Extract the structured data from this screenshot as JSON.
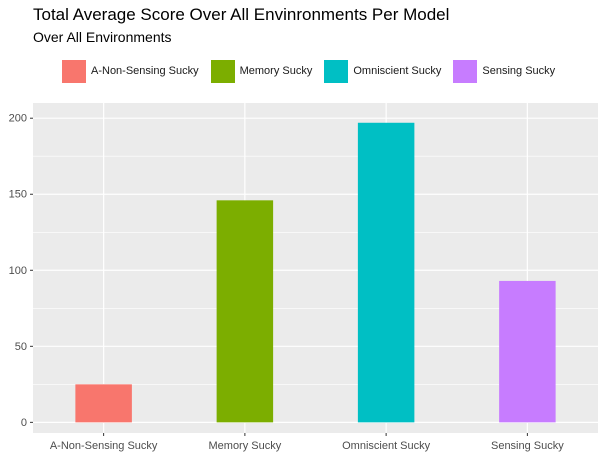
{
  "chart_data": {
    "type": "bar",
    "title": "Total Average Score Over All Envinronments Per Model",
    "subtitle": "Over All Environments",
    "categories": [
      "A-Non-Sensing Sucky",
      "Memory Sucky",
      "Omniscient Sucky",
      "Sensing Sucky"
    ],
    "values": [
      25,
      146,
      197,
      93
    ],
    "colors": [
      "#F8766D",
      "#7CAE00",
      "#00BFC4",
      "#C77CFF"
    ],
    "ylim": [
      -7,
      210
    ],
    "yticks": [
      0,
      50,
      100,
      150,
      200
    ],
    "legend_position": "top",
    "grid": true,
    "panel_background": "#EBEBEB"
  }
}
